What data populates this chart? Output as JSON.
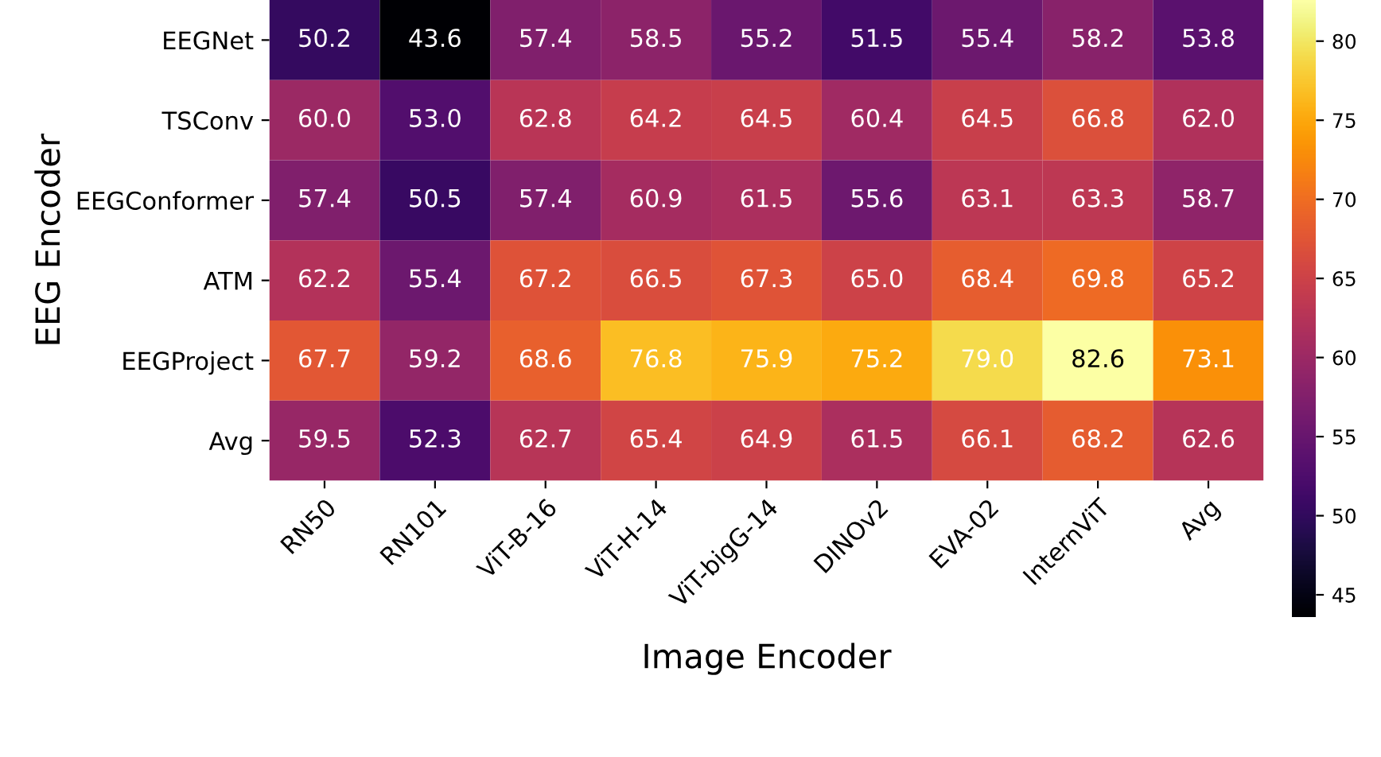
{
  "chart_data": {
    "type": "heatmap",
    "xlabel": "Image Encoder",
    "ylabel": "EEG Encoder",
    "categories": [
      "RN50",
      "RN101",
      "ViT-B-16",
      "ViT-H-14",
      "ViT-bigG-14",
      "DINOv2",
      "EVA-02",
      "InternViT",
      "Avg"
    ],
    "y_categories": [
      "EEGNet",
      "TSConv",
      "EEGConformer",
      "ATM",
      "EEGProject",
      "Avg"
    ],
    "cells": [
      [
        50.2,
        43.6,
        57.4,
        58.5,
        55.2,
        51.5,
        55.4,
        58.2,
        53.8
      ],
      [
        60.0,
        53.0,
        62.8,
        64.2,
        64.5,
        60.4,
        64.5,
        66.8,
        62.0
      ],
      [
        57.4,
        50.5,
        57.4,
        60.9,
        61.5,
        55.6,
        63.1,
        63.3,
        58.7
      ],
      [
        62.2,
        55.4,
        67.2,
        66.5,
        67.3,
        65.0,
        68.4,
        69.8,
        65.2
      ],
      [
        67.7,
        59.2,
        68.6,
        76.8,
        75.9,
        75.2,
        79.0,
        82.6,
        73.1
      ],
      [
        59.5,
        52.3,
        62.7,
        65.4,
        64.9,
        61.5,
        66.1,
        68.2,
        62.6
      ]
    ],
    "cell_labels": [
      [
        "50.2",
        "43.6",
        "57.4",
        "58.5",
        "55.2",
        "51.5",
        "55.4",
        "58.2",
        "53.8"
      ],
      [
        "60.0",
        "53.0",
        "62.8",
        "64.2",
        "64.5",
        "60.4",
        "64.5",
        "66.8",
        "62.0"
      ],
      [
        "57.4",
        "50.5",
        "57.4",
        "60.9",
        "61.5",
        "55.6",
        "63.1",
        "63.3",
        "58.7"
      ],
      [
        "62.2",
        "55.4",
        "67.2",
        "66.5",
        "67.3",
        "65.0",
        "68.4",
        "69.8",
        "65.2"
      ],
      [
        "67.7",
        "59.2",
        "68.6",
        "76.8",
        "75.9",
        "75.2",
        "79.0",
        "82.6",
        "73.1"
      ],
      [
        "59.5",
        "52.3",
        "62.7",
        "65.4",
        "64.9",
        "61.5",
        "66.1",
        "68.2",
        "62.6"
      ]
    ],
    "clim": [
      43.6,
      82.6
    ],
    "cticks": [
      45,
      50,
      55,
      60,
      65,
      70,
      75,
      80
    ]
  }
}
